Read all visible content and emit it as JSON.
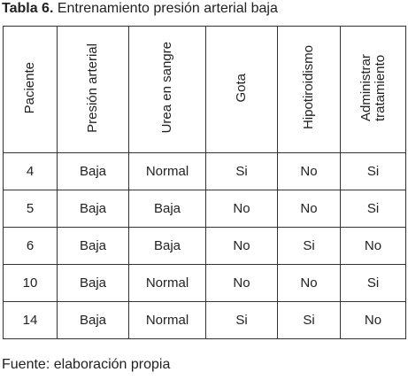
{
  "caption": {
    "label": "Tabla 6.",
    "title": "Entrenamiento presión arterial baja"
  },
  "table": {
    "header": [
      "Paciente",
      "Presión arterial",
      "Urea en sangre",
      "Gota",
      "Hipotiroidismo",
      "Administrar tratamiento"
    ],
    "rows": [
      [
        "4",
        "Baja",
        "Normal",
        "Si",
        "No",
        "Si"
      ],
      [
        "5",
        "Baja",
        "Baja",
        "No",
        "No",
        "Si"
      ],
      [
        "6",
        "Baja",
        "Baja",
        "No",
        "Si",
        "No"
      ],
      [
        "10",
        "Baja",
        "Normal",
        "No",
        "No",
        "Si"
      ],
      [
        "14",
        "Baja",
        "Normal",
        "Si",
        "Si",
        "No"
      ]
    ]
  },
  "source": "Fuente: elaboración propia"
}
